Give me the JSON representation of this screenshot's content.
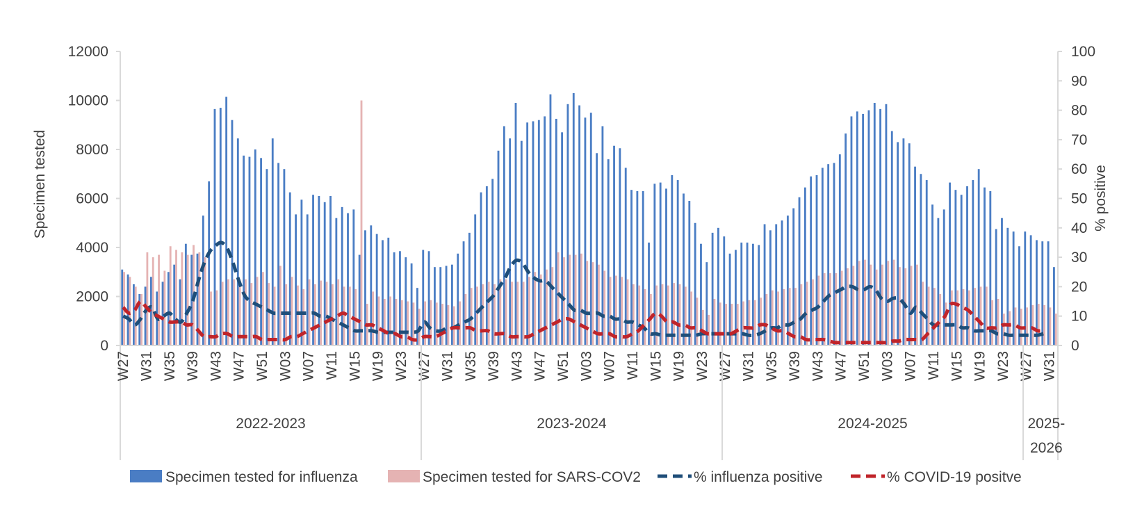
{
  "chart_data": {
    "type": "bar",
    "title": "",
    "ylabel": "Specimen tested",
    "y2label": "% positive",
    "ylim": [
      0,
      12000
    ],
    "y_ticks": [
      0,
      2000,
      4000,
      6000,
      8000,
      10000,
      12000
    ],
    "y2lim": [
      0,
      100
    ],
    "y2_ticks": [
      0,
      10,
      20,
      30,
      40,
      50,
      60,
      70,
      80,
      90,
      100
    ],
    "x_tick_labels": [
      "W27",
      "W31",
      "W35",
      "W39",
      "W43",
      "W47",
      "W51",
      "W03",
      "W07",
      "W11",
      "W15",
      "W19",
      "W23",
      "W27",
      "W31",
      "W35",
      "W39",
      "W43",
      "W47",
      "W51",
      "W03",
      "W07",
      "W11",
      "W15",
      "W19",
      "W23",
      "W27",
      "W31",
      "W35",
      "W39",
      "W43",
      "W47",
      "W51",
      "W03",
      "W07",
      "W11",
      "W15",
      "W19",
      "W23",
      "W27",
      "W31"
    ],
    "seasons": [
      {
        "label": "2022-2023",
        "weeks": 52
      },
      {
        "label": "2023-2024",
        "weeks": 52
      },
      {
        "label": "2024-2025",
        "weeks": 52
      },
      {
        "label": "2025-2026",
        "weeks": 8
      }
    ],
    "series": [
      {
        "name": "Specimen tested for influenza",
        "kind": "bar",
        "color": "#4a7dc4",
        "values": [
          3100,
          2900,
          2500,
          2100,
          2400,
          2800,
          2200,
          2600,
          3000,
          3300,
          2700,
          4150,
          3700,
          3750,
          5300,
          6700,
          9650,
          9700,
          10150,
          9200,
          8450,
          7750,
          7700,
          8000,
          7650,
          7200,
          8450,
          7450,
          7200,
          6250,
          5350,
          5950,
          5350,
          6150,
          6100,
          5850,
          6100,
          5200,
          5650,
          5400,
          5550,
          3700,
          4700,
          4900,
          4550,
          4300,
          4400,
          3800,
          3850,
          3600,
          3350,
          2350,
          3900,
          3850,
          3200,
          3200,
          3250,
          3300,
          3750,
          4250,
          4600,
          5350,
          6250,
          6500,
          6800,
          7950,
          8950,
          8450,
          9900,
          8350,
          9100,
          9150,
          9200,
          9350,
          10250,
          9250,
          8700,
          9850,
          10300,
          9800,
          9300,
          9500,
          7850,
          8950,
          7600,
          8150,
          8050,
          7250,
          6350,
          6300,
          6300,
          4200,
          6600,
          6650,
          6400,
          6950,
          6750,
          6200,
          5900,
          5000,
          4150,
          3400,
          4600,
          4800,
          4450,
          3750,
          3900,
          4200,
          4200,
          4150,
          4100,
          4950,
          4700,
          4950,
          5100,
          5300,
          5600,
          6050,
          6450,
          6900,
          6950,
          7250,
          7400,
          7450,
          7800,
          8650,
          9350,
          9550,
          9450,
          9600,
          9900,
          9650,
          9850,
          8750,
          8300,
          8450,
          8250,
          7300,
          7000,
          6750,
          5750,
          5200,
          5550,
          6650,
          6350,
          6150,
          6500,
          6750,
          7200,
          6450,
          6300,
          4750,
          5200,
          4800,
          4650,
          4050,
          4650,
          4500,
          4300,
          4250,
          4250,
          3200
        ]
      },
      {
        "name": "Specimen tested for SARS-COV2",
        "kind": "bar",
        "color": "#e5b3b3",
        "values": [
          3000,
          2800,
          2400,
          2100,
          3800,
          3600,
          3700,
          3050,
          4050,
          3900,
          3800,
          3700,
          4100,
          3800,
          3600,
          2200,
          2250,
          2600,
          2700,
          2700,
          2600,
          2700,
          2550,
          2800,
          3000,
          2550,
          2400,
          3250,
          2500,
          2800,
          2450,
          2300,
          2700,
          2500,
          2650,
          2600,
          2500,
          2700,
          2400,
          2400,
          2300,
          10000,
          1700,
          2200,
          2000,
          1900,
          2000,
          1900,
          1850,
          1800,
          1750,
          1500,
          1800,
          1850,
          1750,
          1700,
          1650,
          1600,
          1800,
          2100,
          2350,
          2400,
          2500,
          2600,
          2500,
          2700,
          2700,
          2600,
          2600,
          2600,
          2800,
          3000,
          2900,
          3100,
          3200,
          3800,
          3600,
          3700,
          3700,
          3750,
          3450,
          3400,
          3300,
          3050,
          2800,
          2850,
          2800,
          2700,
          2500,
          2450,
          2300,
          2100,
          2450,
          2500,
          2450,
          2550,
          2500,
          2400,
          2200,
          1950,
          1450,
          1250,
          1900,
          1750,
          1700,
          1700,
          1700,
          1800,
          1850,
          1850,
          1950,
          2100,
          2250,
          2200,
          2300,
          2350,
          2350,
          2500,
          2600,
          2700,
          2850,
          2950,
          2950,
          2950,
          3050,
          3150,
          3250,
          3450,
          3500,
          3300,
          3100,
          3300,
          3450,
          3500,
          3200,
          3150,
          3250,
          3300,
          2600,
          2400,
          2350,
          2100,
          1750,
          2250,
          2250,
          2300,
          2250,
          2350,
          2400,
          2400,
          1850,
          1900,
          1300,
          1400,
          1550,
          1500,
          1550,
          1650,
          1700,
          1650,
          1550,
          1300
        ]
      },
      {
        "name": "% influenza positive",
        "kind": "line",
        "axis": "right",
        "dash": "dashed",
        "color": "#1f4e79",
        "values": [
          10,
          9,
          7,
          9,
          12,
          13,
          9,
          10,
          11,
          9,
          8,
          11,
          15,
          22,
          28,
          32,
          34,
          35,
          33,
          28,
          22,
          17,
          15,
          14,
          13,
          12,
          11,
          11,
          11,
          11,
          11,
          11,
          11,
          11,
          10,
          10,
          9,
          8,
          7,
          6,
          5,
          5,
          5,
          5,
          4.5,
          4.5,
          4.5,
          4.5,
          4.5,
          4.5,
          4.5,
          5,
          8,
          6,
          5,
          5,
          6,
          6,
          7,
          8,
          9,
          11,
          13,
          15,
          17,
          20,
          23,
          27,
          29,
          28,
          25,
          23,
          22,
          22,
          20,
          18,
          16,
          14,
          12,
          12,
          11,
          11,
          11,
          10,
          10,
          9,
          9,
          8,
          8,
          7,
          6,
          4,
          4,
          3.5,
          3.5,
          3.5,
          3.5,
          3.5,
          3.5,
          3.5,
          4,
          4,
          4,
          4,
          4,
          4,
          4,
          4,
          3.5,
          3.5,
          4,
          5,
          6,
          6,
          7,
          7,
          8,
          9,
          11,
          12,
          13,
          15,
          17,
          18,
          19,
          20,
          20,
          19,
          19,
          20,
          19,
          16,
          15,
          16,
          16,
          14,
          11,
          13,
          11,
          9,
          7,
          7,
          7,
          7,
          7,
          6,
          6,
          5,
          5,
          5,
          5,
          4,
          4,
          3.5,
          3.5,
          3.5,
          3.5,
          3.5,
          3.5,
          4
        ]
      },
      {
        "name": "% COVID-19 positve",
        "kind": "line",
        "axis": "right",
        "dash": "dashed",
        "color": "#c0242a",
        "values": [
          13,
          11,
          12,
          15,
          13,
          11,
          10,
          9,
          8,
          8,
          8,
          7,
          7,
          5,
          3,
          3,
          3,
          4,
          4,
          3,
          3,
          3,
          3,
          3,
          2,
          2,
          2,
          2,
          2,
          3,
          3,
          4,
          5,
          6,
          7,
          8,
          9,
          10,
          11,
          10,
          9,
          8,
          7,
          7,
          6,
          5,
          4,
          4,
          3,
          3,
          2,
          2,
          3,
          3,
          3,
          4,
          5,
          6,
          6,
          6,
          6,
          5,
          5,
          5,
          4,
          4,
          4,
          3,
          3,
          3,
          3,
          4,
          5,
          6,
          7,
          8,
          9,
          9,
          8,
          7,
          6,
          5,
          4,
          4,
          4,
          3,
          3,
          3,
          4,
          5,
          7,
          9,
          11,
          10,
          8,
          8,
          7,
          7,
          6,
          6,
          5,
          4,
          4,
          4,
          4,
          4,
          5,
          6,
          6,
          6,
          7,
          7,
          6,
          5,
          5,
          4,
          3,
          3,
          2,
          2,
          2,
          2,
          1.5,
          1,
          1,
          1,
          1,
          1,
          1,
          1,
          1,
          1,
          1,
          1.5,
          1.5,
          2,
          2,
          2,
          2,
          4,
          6,
          8,
          10,
          14,
          14,
          13,
          12,
          10,
          8,
          6,
          6,
          6,
          7,
          7,
          7,
          6,
          6,
          6,
          5,
          5
        ]
      }
    ],
    "legend": [
      "Specimen tested for influenza",
      "Specimen tested for SARS-COV2",
      "% influenza positive",
      "% COVID-19 positve"
    ],
    "legend_position": "bottom",
    "grid": false
  },
  "colors": {
    "axis": "#d9d9d9",
    "text": "#404040"
  }
}
